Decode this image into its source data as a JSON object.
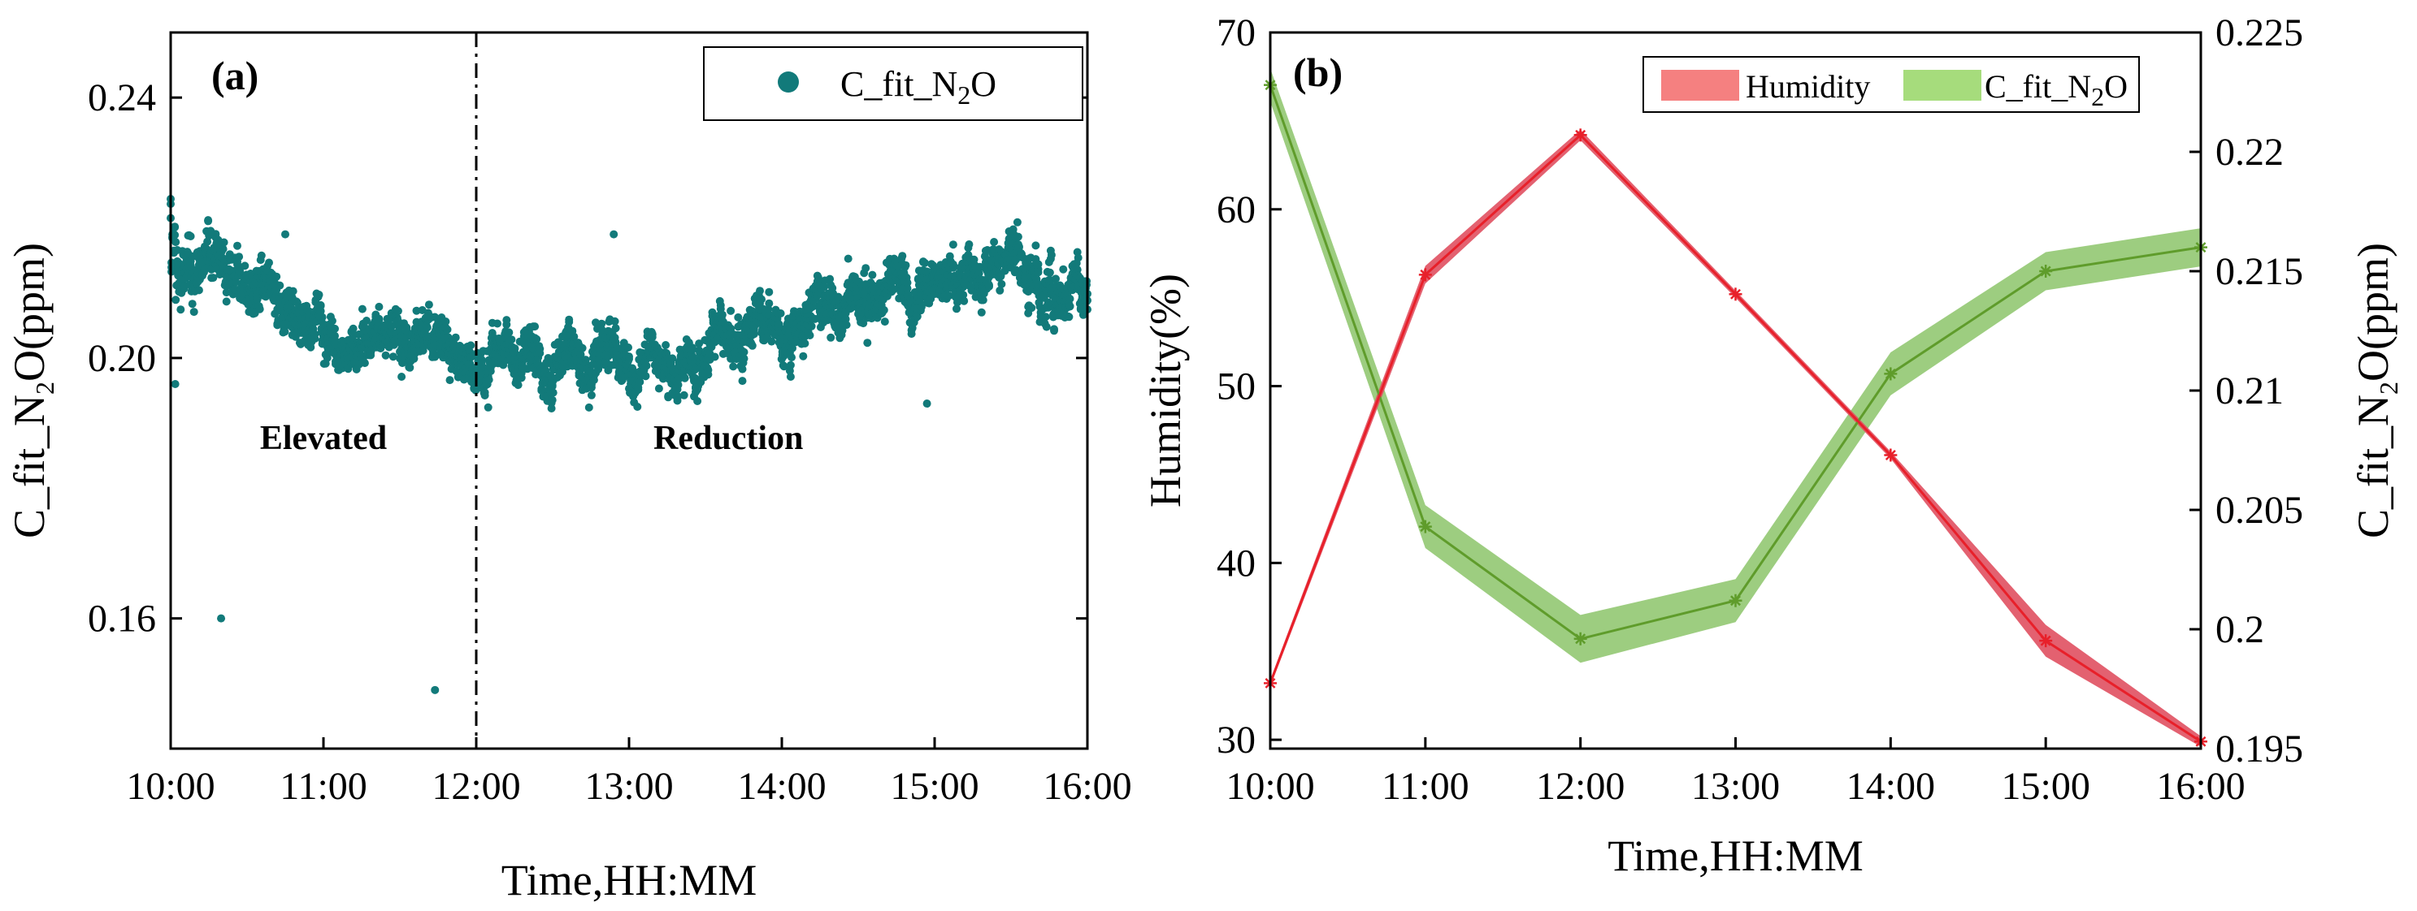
{
  "chart_data": [
    {
      "type": "scatter",
      "panel_label": "(a)",
      "xlabel": "Time,HH:MM",
      "ylabel": {
        "pre": "C_fit_N",
        "sub": "2",
        "post": "O(ppm)"
      },
      "xlim": [
        10,
        16
      ],
      "ylim": [
        0.14,
        0.25
      ],
      "xticks": [
        10,
        11,
        12,
        13,
        14,
        15,
        16
      ],
      "xtick_labels": [
        "10:00",
        "11:00",
        "12:00",
        "13:00",
        "14:00",
        "15:00",
        "16:00"
      ],
      "yticks": [
        0.16,
        0.2,
        0.24
      ],
      "ytick_labels": [
        "0.16",
        "0.20",
        "0.24"
      ],
      "vline_x": 12,
      "annotations": [
        {
          "text": "Elevated",
          "x": 11,
          "y": 0.186
        },
        {
          "text": "Reduction",
          "x": 13.65,
          "y": 0.186
        }
      ],
      "legend": {
        "label": {
          "pre": "C_fit_N",
          "sub": "2",
          "post": "O"
        },
        "position": "top-right"
      },
      "series": [
        {
          "name": "C_fit_N2O",
          "color": "#127a7a",
          "trend": [
            [
              10.0,
              0.212
            ],
            [
              10.5,
              0.212
            ],
            [
              11.0,
              0.206
            ],
            [
              11.5,
              0.204
            ],
            [
              12.0,
              0.202
            ],
            [
              12.5,
              0.2
            ],
            [
              13.0,
              0.199
            ],
            [
              13.5,
              0.2
            ],
            [
              14.0,
              0.204
            ],
            [
              14.5,
              0.209
            ],
            [
              15.0,
              0.212
            ],
            [
              15.5,
              0.214
            ],
            [
              16.0,
              0.212
            ]
          ],
          "outliers": [
            [
              10.33,
              0.16
            ],
            [
              11.73,
              0.149
            ],
            [
              12.9,
              0.219
            ],
            [
              14.95,
              0.193
            ],
            [
              10.75,
              0.219
            ],
            [
              10.03,
              0.196
            ]
          ]
        }
      ]
    },
    {
      "type": "line",
      "panel_label": "(b)",
      "xlabel": "Time,HH:MM",
      "ylabel_left": "Humidity(%)",
      "ylabel_right": {
        "pre": "C_fit_N",
        "sub": "2",
        "post": "O(ppm)"
      },
      "x": [
        10,
        11,
        12,
        13,
        14,
        15,
        16
      ],
      "xtick_labels": [
        "10:00",
        "11:00",
        "12:00",
        "13:00",
        "14:00",
        "15:00",
        "16:00"
      ],
      "xlim": [
        10,
        16
      ],
      "ylim_left": [
        29.5,
        70
      ],
      "yticks_left": [
        30,
        40,
        50,
        60,
        70
      ],
      "ytick_labels_left": [
        "30",
        "40",
        "50",
        "60",
        "70"
      ],
      "ylim_right": [
        0.195,
        0.225
      ],
      "yticks_right": [
        0.195,
        0.2,
        0.205,
        0.21,
        0.215,
        0.22,
        0.225
      ],
      "ytick_labels_right": [
        "0.195",
        "0.2",
        "0.205",
        "0.21",
        "0.215",
        "0.22",
        "0.225"
      ],
      "legend_position": "top-right",
      "series": [
        {
          "name": "Humidity",
          "axis": "left",
          "line_color": "#e8202a",
          "band_color": "#e05060",
          "legend_color": "#f58080",
          "values": [
            33.2,
            56.3,
            64.2,
            55.2,
            46.1,
            35.6,
            29.9
          ],
          "band": [
            0.2,
            0.5,
            0.3,
            0.2,
            0.2,
            0.9,
            0.3
          ]
        },
        {
          "name": {
            "pre": "C_fit_N",
            "sub": "2",
            "post": "O"
          },
          "axis": "right",
          "line_color": "#5f9c2b",
          "band_color": "#8cc46a",
          "legend_color": "#a6dc7c",
          "values": [
            0.2228,
            0.2043,
            0.1996,
            0.2012,
            0.2107,
            0.215,
            0.216
          ],
          "band": [
            0.0007,
            0.0009,
            0.001,
            0.0009,
            0.0009,
            0.0008,
            0.0008
          ]
        }
      ]
    }
  ]
}
